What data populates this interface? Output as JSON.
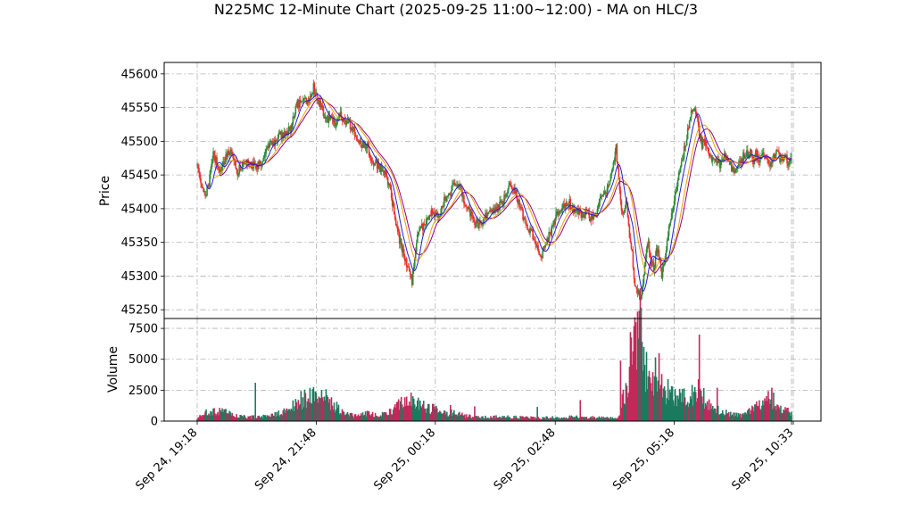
{
  "chart_data": {
    "type": "candlestick",
    "title": "N225MC 12-Minute Chart (2025-09-25 11:00~12:00) - MA on HLC/3",
    "price_panel": {
      "ylabel": "Price",
      "yticks": [
        45250,
        45300,
        45350,
        45400,
        45450,
        45500,
        45550,
        45600
      ],
      "ylim": [
        45237,
        45617
      ]
    },
    "volume_panel": {
      "ylabel": "Volume",
      "yticks": [
        0,
        2500,
        5000,
        7500
      ],
      "ytick_labels": [
        "0",
        "2500",
        "5000",
        "7500"
      ],
      "ylim": [
        0,
        8300
      ]
    },
    "x_tick_labels": [
      "Sep 24, 19:18",
      "Sep 24, 21:48",
      "Sep 25, 00:18",
      "Sep 25, 02:48",
      "Sep 25, 05:18",
      "Sep 25, 10:33"
    ],
    "grid": true,
    "colors": {
      "up": "#2e8b3a",
      "down": "#e8332f",
      "vol_up": "#1a7a5e",
      "vol_down": "#c2285a",
      "ma_short": "#1f1fd6",
      "ma_mid": "#f0a000",
      "ma_long": "#8b008b"
    },
    "price_path": [
      [
        0,
        45465
      ],
      [
        8,
        45420
      ],
      [
        12,
        45430
      ],
      [
        18,
        45485
      ],
      [
        25,
        45450
      ],
      [
        32,
        45475
      ],
      [
        38,
        45490
      ],
      [
        45,
        45455
      ],
      [
        52,
        45470
      ],
      [
        60,
        45465
      ],
      [
        65,
        45462
      ],
      [
        72,
        45470
      ],
      [
        78,
        45495
      ],
      [
        85,
        45495
      ],
      [
        92,
        45510
      ],
      [
        100,
        45510
      ],
      [
        105,
        45520
      ],
      [
        110,
        45555
      ],
      [
        115,
        45555
      ],
      [
        120,
        45560
      ],
      [
        125,
        45560
      ],
      [
        130,
        45580
      ],
      [
        135,
        45560
      ],
      [
        140,
        45545
      ],
      [
        145,
        45535
      ],
      [
        150,
        45530
      ],
      [
        155,
        45530
      ],
      [
        160,
        45540
      ],
      [
        165,
        45530
      ],
      [
        170,
        45525
      ],
      [
        175,
        45515
      ],
      [
        180,
        45500
      ],
      [
        185,
        45495
      ],
      [
        190,
        45490
      ],
      [
        196,
        45470
      ],
      [
        205,
        45460
      ],
      [
        210,
        45450
      ],
      [
        215,
        45430
      ],
      [
        220,
        45395
      ],
      [
        225,
        45360
      ],
      [
        230,
        45335
      ],
      [
        235,
        45310
      ],
      [
        240,
        45290
      ],
      [
        243,
        45330
      ],
      [
        246,
        45360
      ],
      [
        250,
        45370
      ],
      [
        255,
        45380
      ],
      [
        260,
        45395
      ],
      [
        265,
        45390
      ],
      [
        270,
        45385
      ],
      [
        275,
        45410
      ],
      [
        280,
        45420
      ],
      [
        285,
        45430
      ],
      [
        290,
        45440
      ],
      [
        295,
        45425
      ],
      [
        300,
        45400
      ],
      [
        305,
        45395
      ],
      [
        310,
        45380
      ],
      [
        315,
        45375
      ],
      [
        320,
        45385
      ],
      [
        325,
        45390
      ],
      [
        330,
        45395
      ],
      [
        335,
        45400
      ],
      [
        340,
        45410
      ],
      [
        345,
        45420
      ],
      [
        350,
        45440
      ],
      [
        355,
        45425
      ],
      [
        360,
        45405
      ],
      [
        365,
        45385
      ],
      [
        370,
        45370
      ],
      [
        375,
        45360
      ],
      [
        380,
        45340
      ],
      [
        385,
        45330
      ],
      [
        390,
        45350
      ],
      [
        395,
        45365
      ],
      [
        400,
        45385
      ],
      [
        405,
        45400
      ],
      [
        410,
        45405
      ],
      [
        415,
        45410
      ],
      [
        420,
        45400
      ],
      [
        425,
        45395
      ],
      [
        430,
        45390
      ],
      [
        435,
        45395
      ],
      [
        440,
        45385
      ],
      [
        445,
        45390
      ],
      [
        450,
        45420
      ],
      [
        455,
        45425
      ],
      [
        460,
        45430
      ],
      [
        465,
        45470
      ],
      [
        468,
        45490
      ],
      [
        471,
        45440
      ],
      [
        474,
        45400
      ],
      [
        477,
        45395
      ],
      [
        480,
        45410
      ],
      [
        483,
        45360
      ],
      [
        486,
        45330
      ],
      [
        489,
        45290
      ],
      [
        492,
        45280
      ],
      [
        495,
        45270
      ],
      [
        498,
        45290
      ],
      [
        501,
        45330
      ],
      [
        504,
        45350
      ],
      [
        507,
        45320
      ],
      [
        510,
        45310
      ],
      [
        513,
        45340
      ],
      [
        516,
        45330
      ],
      [
        519,
        45300
      ],
      [
        522,
        45320
      ],
      [
        525,
        45350
      ],
      [
        528,
        45380
      ],
      [
        531,
        45400
      ],
      [
        534,
        45420
      ],
      [
        537,
        45440
      ],
      [
        540,
        45460
      ],
      [
        543,
        45480
      ],
      [
        546,
        45500
      ],
      [
        549,
        45520
      ],
      [
        552,
        45540
      ],
      [
        555,
        45550
      ],
      [
        558,
        45540
      ],
      [
        561,
        45510
      ],
      [
        564,
        45495
      ],
      [
        567,
        45500
      ],
      [
        570,
        45495
      ],
      [
        573,
        45475
      ],
      [
        576,
        45470
      ],
      [
        579,
        45475
      ],
      [
        582,
        45470
      ],
      [
        585,
        45465
      ],
      [
        588,
        45475
      ],
      [
        591,
        45480
      ],
      [
        594,
        45470
      ],
      [
        597,
        45460
      ],
      [
        600,
        45455
      ],
      [
        603,
        45460
      ],
      [
        606,
        45470
      ],
      [
        609,
        45475
      ],
      [
        612,
        45480
      ],
      [
        615,
        45480
      ],
      [
        618,
        45485
      ],
      [
        621,
        45470
      ],
      [
        624,
        45480
      ],
      [
        627,
        45475
      ],
      [
        630,
        45475
      ],
      [
        633,
        45480
      ],
      [
        636,
        45470
      ],
      [
        639,
        45465
      ],
      [
        642,
        45470
      ],
      [
        645,
        45480
      ],
      [
        648,
        45485
      ],
      [
        651,
        45475
      ],
      [
        654,
        45470
      ],
      [
        657,
        45475
      ],
      [
        660,
        45470
      ],
      [
        664,
        45480
      ]
    ],
    "volume_path": [
      [
        0,
        200
      ],
      [
        10,
        700
      ],
      [
        25,
        800
      ],
      [
        40,
        600
      ],
      [
        55,
        300
      ],
      [
        70,
        400
      ],
      [
        85,
        500
      ],
      [
        100,
        800
      ],
      [
        110,
        1500
      ],
      [
        120,
        1800
      ],
      [
        130,
        2000
      ],
      [
        140,
        2200
      ],
      [
        150,
        1500
      ],
      [
        160,
        800
      ],
      [
        170,
        500
      ],
      [
        180,
        400
      ],
      [
        190,
        600
      ],
      [
        200,
        500
      ],
      [
        215,
        700
      ],
      [
        230,
        1500
      ],
      [
        240,
        1800
      ],
      [
        250,
        1400
      ],
      [
        260,
        1000
      ],
      [
        270,
        900
      ],
      [
        280,
        700
      ],
      [
        290,
        600
      ],
      [
        300,
        400
      ],
      [
        320,
        300
      ],
      [
        340,
        350
      ],
      [
        360,
        300
      ],
      [
        380,
        250
      ],
      [
        400,
        300
      ],
      [
        420,
        350
      ],
      [
        440,
        300
      ],
      [
        460,
        250
      ],
      [
        470,
        200
      ],
      [
        480,
        3000
      ],
      [
        490,
        7000
      ],
      [
        495,
        8000
      ],
      [
        500,
        4000
      ],
      [
        505,
        4300
      ],
      [
        510,
        3500
      ],
      [
        515,
        4500
      ],
      [
        520,
        3000
      ],
      [
        525,
        2000
      ],
      [
        530,
        2200
      ],
      [
        535,
        2000
      ],
      [
        540,
        1800
      ],
      [
        545,
        2000
      ],
      [
        550,
        1800
      ],
      [
        555,
        2200
      ],
      [
        560,
        2700
      ],
      [
        565,
        2000
      ],
      [
        570,
        1500
      ],
      [
        575,
        1200
      ],
      [
        580,
        900
      ],
      [
        590,
        700
      ],
      [
        600,
        500
      ],
      [
        610,
        500
      ],
      [
        620,
        900
      ],
      [
        630,
        1300
      ],
      [
        640,
        2000
      ],
      [
        650,
        1000
      ],
      [
        660,
        800
      ],
      [
        664,
        700
      ]
    ],
    "volume_overrides": {
      "65": 3100,
      "283": 1300,
      "310": 1200,
      "380": 1150,
      "428": 1700,
      "473": 4900,
      "484": 7200,
      "490": 8000,
      "526": 3400,
      "561": 7000,
      "581": 2700,
      "642": 2700
    }
  }
}
